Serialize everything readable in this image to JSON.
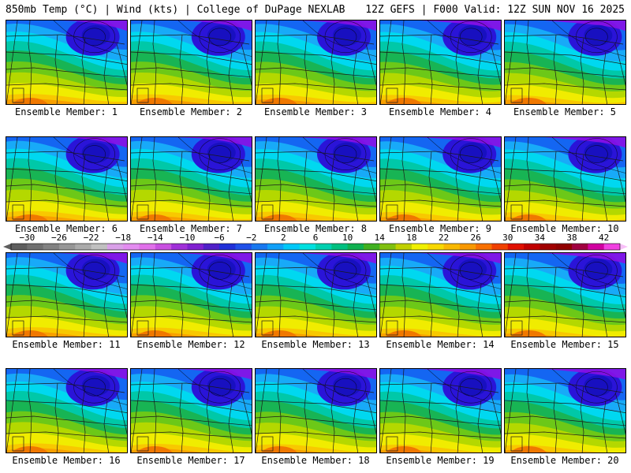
{
  "header": {
    "left": "850mb Temp (°C) | Wind (kts) | College of DuPage NEXLAB",
    "right": "12Z GEFS | F000 Valid: 12Z SUN NOV 16 2025"
  },
  "panels": [
    {
      "label": "Ensemble Member: 1"
    },
    {
      "label": "Ensemble Member: 2"
    },
    {
      "label": "Ensemble Member: 3"
    },
    {
      "label": "Ensemble Member: 4"
    },
    {
      "label": "Ensemble Member: 5"
    },
    {
      "label": "Ensemble Member: 6"
    },
    {
      "label": "Ensemble Member: 7"
    },
    {
      "label": "Ensemble Member: 8"
    },
    {
      "label": "Ensemble Member: 9"
    },
    {
      "label": "Ensemble Member: 10"
    },
    {
      "label": "Ensemble Member: 11"
    },
    {
      "label": "Ensemble Member: 12"
    },
    {
      "label": "Ensemble Member: 13"
    },
    {
      "label": "Ensemble Member: 14"
    },
    {
      "label": "Ensemble Member: 15"
    },
    {
      "label": "Ensemble Member: 16"
    },
    {
      "label": "Ensemble Member: 17"
    },
    {
      "label": "Ensemble Member: 18"
    },
    {
      "label": "Ensemble Member: 19"
    },
    {
      "label": "Ensemble Member: 20"
    }
  ],
  "colorbar": {
    "ticks": [
      "−30",
      "−26",
      "−22",
      "−18",
      "−14",
      "−10",
      "−6",
      "−2",
      "2",
      "6",
      "10",
      "14",
      "18",
      "22",
      "26",
      "30",
      "34",
      "38",
      "42"
    ],
    "min": -32,
    "max": 44,
    "step": 2,
    "colors": [
      "#5e5e5e",
      "#707070",
      "#828282",
      "#969696",
      "#aaaaaa",
      "#c0c0c0",
      "#d9a0e8",
      "#e38cf0",
      "#e070ea",
      "#c850e0",
      "#a030d8",
      "#8020d0",
      "#5020c8",
      "#2030d8",
      "#2050e8",
      "#1878f0",
      "#10a0f8",
      "#00c8f8",
      "#00e0e0",
      "#00d0b0",
      "#00c080",
      "#10b050",
      "#40b020",
      "#80c010",
      "#c0d000",
      "#f0f000",
      "#f8d800",
      "#f8b800",
      "#f89800",
      "#f87000",
      "#f04000",
      "#e01000",
      "#c00000",
      "#a00000",
      "#900000",
      "#a00040",
      "#d000a0",
      "#f040e0"
    ]
  },
  "map_colors": {
    "purple": "#8a10e6",
    "blue": "#2a14d8",
    "mid_blue": "#1466f2",
    "sky": "#18aaf8",
    "cyan": "#00d8f0",
    "teal": "#00c8a8",
    "green": "#18b454",
    "lime": "#6cc818",
    "yellow_green": "#b4d800",
    "yellow": "#f0ec00",
    "gold": "#f8c800",
    "orange": "#f8a000"
  }
}
